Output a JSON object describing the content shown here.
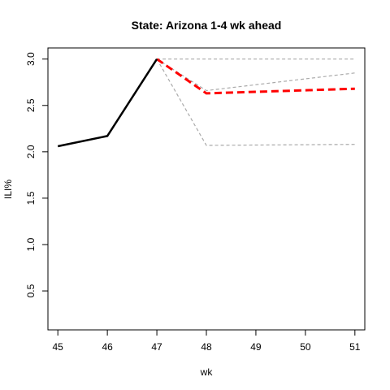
{
  "chart_data": {
    "type": "line",
    "title": "State: Arizona 1-4 wk ahead",
    "xlabel": "wk",
    "ylabel": "ILI%",
    "xlim": [
      44.8,
      51.2
    ],
    "ylim": [
      0.08,
      3.12
    ],
    "x_ticks": [
      "45",
      "46",
      "47",
      "48",
      "49",
      "50",
      "51"
    ],
    "y_ticks": [
      "0.5",
      "1.0",
      "1.5",
      "2.0",
      "2.5",
      "3.0"
    ],
    "grid": false,
    "legend": "none",
    "series": [
      {
        "role": "observed",
        "color": "#000000",
        "style": "solid",
        "points": [
          [
            45,
            2.06
          ],
          [
            46,
            2.17
          ],
          [
            47,
            3.0
          ]
        ]
      },
      {
        "role": "forecast",
        "color": "#ff0000",
        "style": "dashed",
        "points": [
          [
            47,
            3.0
          ],
          [
            48,
            2.63
          ],
          [
            51,
            2.68
          ]
        ]
      },
      {
        "role": "bound",
        "color": "#aaaaaa",
        "style": "dashed",
        "points": [
          [
            47,
            3.0
          ],
          [
            51,
            3.0
          ]
        ]
      },
      {
        "role": "bound",
        "color": "#aaaaaa",
        "style": "dashed",
        "points": [
          [
            47,
            3.0
          ],
          [
            48,
            2.66
          ],
          [
            51,
            2.85
          ]
        ]
      },
      {
        "role": "bound",
        "color": "#aaaaaa",
        "style": "dashed",
        "points": [
          [
            47,
            3.0
          ],
          [
            48,
            2.07
          ],
          [
            51,
            2.08
          ]
        ]
      }
    ]
  }
}
